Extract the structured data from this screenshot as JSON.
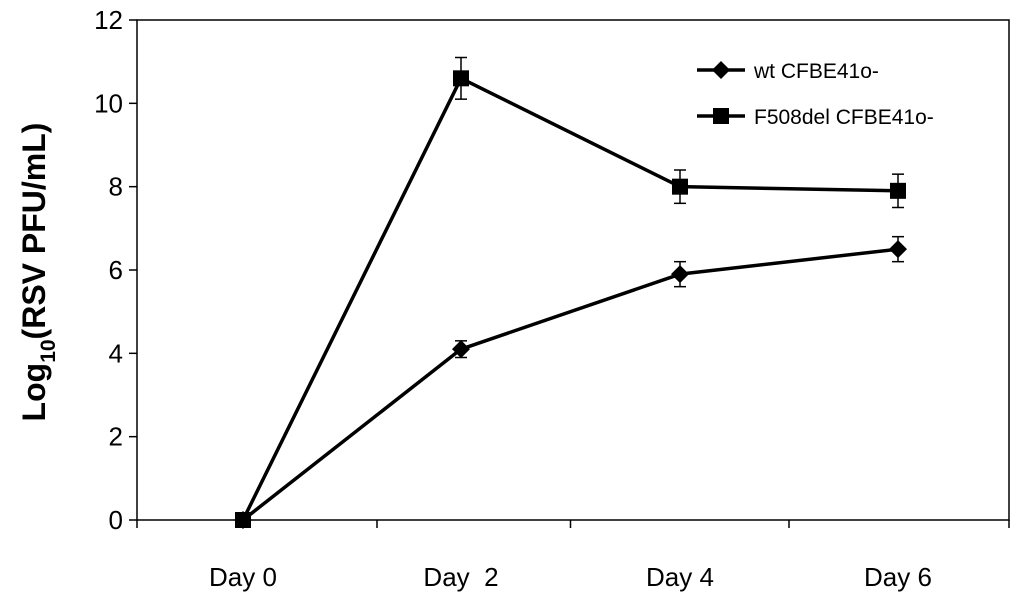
{
  "chart_data": {
    "type": "line",
    "categories": [
      "Day 0",
      "Day  2",
      "Day 4",
      "Day 6"
    ],
    "ylabel": "Log",
    "ylabel_subscript": "10",
    "ylabel_rest": "(RSV PFU/mL)",
    "xlabel": "",
    "ylim": [
      0,
      12
    ],
    "yticks": [
      0,
      2,
      4,
      6,
      8,
      10,
      12
    ],
    "grid": false,
    "legend_position": "top-right",
    "series": [
      {
        "name": "wt CFBE41o-",
        "marker": "diamond",
        "values": [
          0,
          4.1,
          5.9,
          6.5
        ],
        "errors": [
          0,
          0.2,
          0.3,
          0.3
        ]
      },
      {
        "name": "F508del CFBE41o-",
        "marker": "square",
        "values": [
          0,
          10.6,
          8.0,
          7.9
        ],
        "errors": [
          0,
          0.5,
          0.4,
          0.4
        ]
      }
    ],
    "colors": {
      "line": "#000000",
      "axis": "#000000"
    }
  }
}
